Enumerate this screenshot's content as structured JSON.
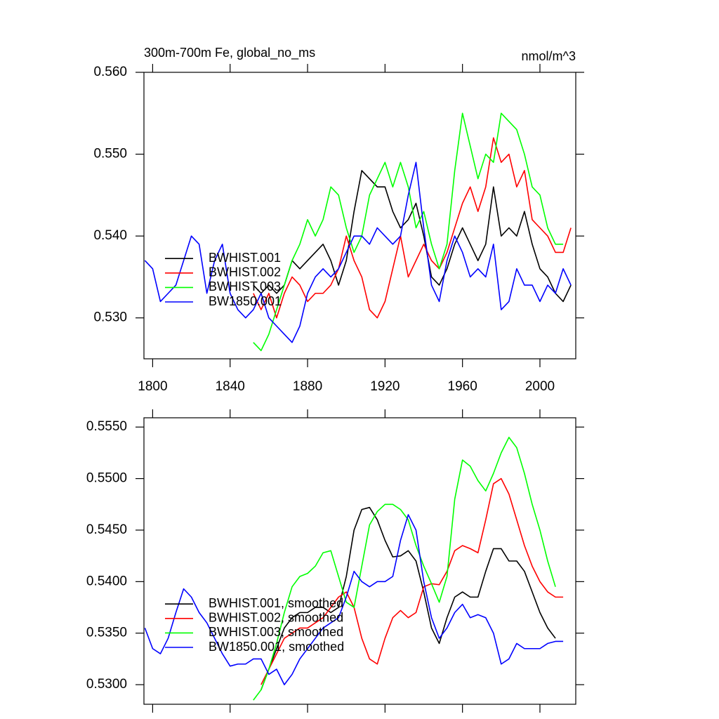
{
  "chart_data": [
    {
      "type": "line",
      "title": "300m-700m Fe, global_no_ms",
      "units": "nmol/m^3",
      "x": [
        1796,
        1800,
        1804,
        1808,
        1812,
        1816,
        1820,
        1824,
        1828,
        1832,
        1836,
        1840,
        1844,
        1848,
        1852,
        1856,
        1860,
        1864,
        1868,
        1872,
        1876,
        1880,
        1884,
        1888,
        1892,
        1896,
        1900,
        1904,
        1908,
        1912,
        1916,
        1920,
        1924,
        1928,
        1932,
        1936,
        1940,
        1944,
        1948,
        1952,
        1956,
        1960,
        1964,
        1968,
        1972,
        1976,
        1980,
        1984,
        1988,
        1992,
        1996,
        2000,
        2004,
        2008,
        2012,
        2016
      ],
      "xlim": [
        1795.5,
        2018.5
      ],
      "xticks": [
        1800,
        1840,
        1880,
        1920,
        1960,
        2000
      ],
      "ylim": [
        0.525,
        0.56
      ],
      "yticks": [
        {
          "value": 0.53,
          "label": "0.530"
        },
        {
          "value": 0.54,
          "label": "0.540"
        },
        {
          "value": 0.55,
          "label": "0.550"
        },
        {
          "value": 0.56,
          "label": "0.560"
        }
      ],
      "legend": "lower-left",
      "series": [
        {
          "name": "BWHIST.001",
          "color": "#000000",
          "values": [
            null,
            null,
            null,
            null,
            null,
            null,
            null,
            null,
            null,
            null,
            null,
            null,
            null,
            null,
            0.534,
            0.533,
            0.534,
            0.533,
            0.534,
            0.537,
            0.536,
            0.537,
            0.538,
            0.539,
            0.537,
            0.534,
            0.537,
            0.543,
            0.548,
            0.547,
            0.546,
            0.546,
            0.543,
            0.541,
            0.542,
            0.544,
            0.54,
            0.535,
            0.534,
            0.536,
            0.539,
            0.541,
            0.539,
            0.537,
            0.539,
            0.546,
            0.54,
            0.541,
            0.54,
            0.543,
            0.539,
            0.536,
            0.535,
            0.533,
            0.532,
            0.534
          ]
        },
        {
          "name": "BWHIST.002",
          "color": "#ff0000",
          "values": [
            null,
            null,
            null,
            null,
            null,
            null,
            null,
            null,
            null,
            null,
            null,
            null,
            null,
            null,
            0.533,
            0.531,
            0.533,
            0.53,
            0.533,
            0.535,
            0.534,
            0.532,
            0.533,
            0.533,
            0.534,
            0.536,
            0.54,
            0.537,
            0.535,
            0.531,
            0.53,
            0.532,
            0.536,
            0.54,
            0.535,
            0.537,
            0.539,
            0.537,
            0.536,
            0.538,
            0.541,
            0.544,
            0.546,
            0.543,
            0.546,
            0.552,
            0.549,
            0.55,
            0.546,
            0.548,
            0.542,
            0.541,
            0.54,
            0.538,
            0.538,
            0.541
          ]
        },
        {
          "name": "BWHIST.003",
          "color": "#00ff00",
          "values": [
            null,
            null,
            null,
            null,
            null,
            null,
            null,
            null,
            null,
            null,
            null,
            null,
            null,
            null,
            0.527,
            0.526,
            0.528,
            0.531,
            0.534,
            0.537,
            0.539,
            0.542,
            0.54,
            0.542,
            0.546,
            0.545,
            0.541,
            0.538,
            0.54,
            0.545,
            0.547,
            0.549,
            0.546,
            0.549,
            0.546,
            0.541,
            0.543,
            0.539,
            0.536,
            0.539,
            0.548,
            0.555,
            0.551,
            0.547,
            0.55,
            0.549,
            0.555,
            0.554,
            0.553,
            0.55,
            0.546,
            0.545,
            0.541,
            0.539,
            0.539,
            null
          ]
        },
        {
          "name": "BW1850.001",
          "color": "#0000ff",
          "values": [
            0.537,
            0.536,
            0.532,
            0.533,
            0.534,
            0.537,
            0.54,
            0.539,
            0.533,
            0.537,
            0.539,
            0.533,
            0.531,
            0.53,
            0.531,
            0.533,
            0.53,
            0.529,
            0.528,
            0.527,
            0.529,
            0.533,
            0.535,
            0.536,
            0.535,
            0.536,
            0.538,
            0.54,
            0.54,
            0.539,
            0.541,
            0.54,
            0.539,
            0.54,
            0.545,
            0.549,
            0.541,
            0.534,
            0.532,
            0.537,
            0.54,
            0.538,
            0.535,
            0.536,
            0.535,
            0.539,
            0.531,
            0.532,
            0.536,
            0.534,
            0.534,
            0.532,
            0.534,
            0.533,
            0.536,
            0.534
          ]
        }
      ]
    },
    {
      "type": "line",
      "x": [
        1796,
        1800,
        1804,
        1808,
        1812,
        1816,
        1820,
        1824,
        1828,
        1832,
        1836,
        1840,
        1844,
        1848,
        1852,
        1856,
        1860,
        1864,
        1868,
        1872,
        1876,
        1880,
        1884,
        1888,
        1892,
        1896,
        1900,
        1904,
        1908,
        1912,
        1916,
        1920,
        1924,
        1928,
        1932,
        1936,
        1940,
        1944,
        1948,
        1952,
        1956,
        1960,
        1964,
        1968,
        1972,
        1976,
        1980,
        1984,
        1988,
        1992,
        1996,
        2000,
        2004,
        2008,
        2012,
        2016
      ],
      "xlim": [
        1795.5,
        2018.5
      ],
      "xticks": [
        1800,
        1840,
        1880,
        1920,
        1960,
        2000
      ],
      "ylim": [
        0.5281,
        0.5559
      ],
      "yticks": [
        {
          "value": 0.53,
          "label": "0.5300"
        },
        {
          "value": 0.535,
          "label": "0.5350"
        },
        {
          "value": 0.54,
          "label": "0.5400"
        },
        {
          "value": 0.545,
          "label": "0.5450"
        },
        {
          "value": 0.55,
          "label": "0.5500"
        },
        {
          "value": 0.555,
          "label": "0.5550"
        }
      ],
      "legend": "lower-left",
      "series": [
        {
          "name": "BWHIST.001, smoothed",
          "color": "#000000",
          "values": [
            null,
            null,
            null,
            null,
            null,
            null,
            null,
            null,
            null,
            null,
            null,
            null,
            null,
            null,
            null,
            0.5295,
            0.5315,
            0.5335,
            0.5355,
            0.5365,
            0.537,
            0.537,
            0.5375,
            0.5375,
            0.537,
            0.5375,
            0.5405,
            0.545,
            0.547,
            0.5472,
            0.546,
            0.544,
            0.5424,
            0.5425,
            0.543,
            0.542,
            0.539,
            0.5355,
            0.534,
            0.5365,
            0.5385,
            0.539,
            0.5385,
            0.5385,
            0.541,
            0.5432,
            0.5432,
            0.542,
            0.542,
            0.541,
            0.539,
            0.537,
            0.5355,
            0.5345,
            null,
            null
          ]
        },
        {
          "name": "BWHIST.002, smoothed",
          "color": "#ff0000",
          "values": [
            null,
            null,
            null,
            null,
            null,
            null,
            null,
            null,
            null,
            null,
            null,
            null,
            null,
            null,
            null,
            0.53,
            0.5315,
            0.533,
            0.5345,
            0.535,
            0.5355,
            0.5355,
            0.536,
            0.5365,
            0.5375,
            0.5385,
            0.539,
            0.5375,
            0.5345,
            0.5325,
            0.532,
            0.5345,
            0.5365,
            0.5372,
            0.5365,
            0.537,
            0.5395,
            0.5398,
            0.5397,
            0.541,
            0.543,
            0.5435,
            0.5432,
            0.5428,
            0.546,
            0.5495,
            0.55,
            0.5485,
            0.546,
            0.5435,
            0.5415,
            0.54,
            0.539,
            0.5385,
            0.5385,
            null
          ]
        },
        {
          "name": "BWHIST.003, smoothed",
          "color": "#00ff00",
          "values": [
            null,
            null,
            null,
            null,
            null,
            null,
            null,
            null,
            null,
            null,
            null,
            null,
            null,
            null,
            0.5285,
            0.5295,
            0.5315,
            0.534,
            0.537,
            0.5395,
            0.5405,
            0.5408,
            0.5415,
            0.5428,
            0.543,
            0.5405,
            0.538,
            0.5375,
            0.5415,
            0.5455,
            0.5468,
            0.5475,
            0.5475,
            0.547,
            0.546,
            0.5435,
            0.5415,
            0.5398,
            0.538,
            0.5405,
            0.548,
            0.5518,
            0.5512,
            0.5498,
            0.5488,
            0.5505,
            0.5525,
            0.554,
            0.553,
            0.5505,
            0.5475,
            0.545,
            0.542,
            0.5395,
            null,
            null
          ]
        },
        {
          "name": "BW1850.001, smoothed",
          "color": "#0000ff",
          "values": [
            0.5355,
            0.5335,
            0.533,
            0.5345,
            0.537,
            0.5393,
            0.5385,
            0.537,
            0.536,
            0.5345,
            0.533,
            0.5318,
            0.532,
            0.532,
            0.5325,
            0.5325,
            0.531,
            0.5315,
            0.53,
            0.531,
            0.5325,
            0.5335,
            0.5345,
            0.5355,
            0.536,
            0.5365,
            0.5385,
            0.541,
            0.54,
            0.5395,
            0.54,
            0.54,
            0.5405,
            0.544,
            0.5465,
            0.545,
            0.54,
            0.5365,
            0.5345,
            0.5355,
            0.537,
            0.5378,
            0.5365,
            0.5368,
            0.5365,
            0.535,
            0.532,
            0.5325,
            0.534,
            0.5335,
            0.5335,
            0.5335,
            0.534,
            0.5342,
            0.5342,
            null
          ]
        }
      ]
    }
  ]
}
